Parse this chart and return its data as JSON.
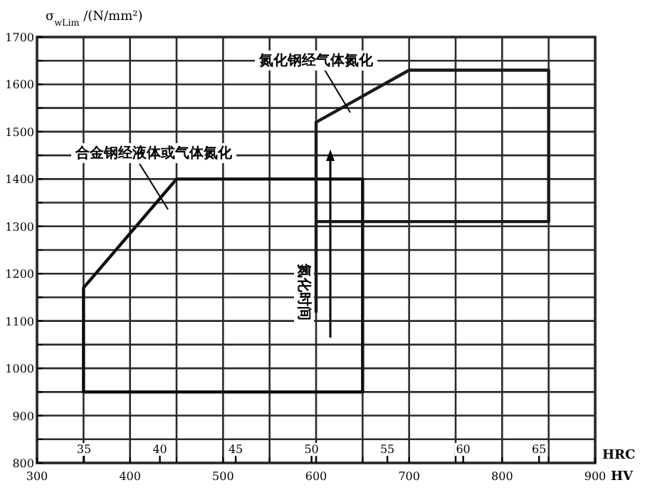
{
  "chart_data": {
    "type": "line",
    "ylabel": "σ$_{wLim}$ /(N/mm²)",
    "xlabel": "HV",
    "x2label": "HRC",
    "xlim": [
      300,
      900
    ],
    "ylim": [
      800,
      1700
    ],
    "xticks": [
      300,
      {
        "value": 350,
        "label": null
      },
      400,
      {
        "value": 450,
        "label": null
      },
      500,
      {
        "value": 550,
        "label": null
      },
      600,
      {
        "value": 650,
        "label": null
      },
      700,
      {
        "value": 750,
        "label": null
      },
      800,
      {
        "value": 850,
        "label": null
      },
      900
    ],
    "yticks": [
      800,
      {
        "value": 850,
        "label": null
      },
      900,
      {
        "value": 950,
        "label": null
      },
      1000,
      {
        "value": 1050,
        "label": null
      },
      1100,
      {
        "value": 1150,
        "label": null
      },
      1200,
      {
        "value": 1250,
        "label": null
      },
      1300,
      {
        "value": 1350,
        "label": null
      },
      1400,
      {
        "value": 1450,
        "label": null
      },
      1500,
      {
        "value": 1550,
        "label": null
      },
      1600,
      {
        "value": 1650,
        "label": null
      },
      1700
    ],
    "x2lim": [
      31.9,
      68.7
    ],
    "x2ticks": [
      35,
      40,
      45,
      50,
      55,
      60,
      65
    ],
    "grid": true,
    "series": [
      {
        "color": "#0d0d0d",
        "x": [
          350,
          350,
          450,
          650,
          650
        ],
        "values": [
          950,
          1170,
          1400,
          1400,
          950
        ]
      },
      {
        "color": "#000000",
        "x": [
          350,
          650
        ],
        "values": [
          950,
          950
        ]
      },
      {
        "color": "#1a1a1a",
        "x": [
          600,
          600,
          700,
          850,
          850,
          600
        ],
        "values": [
          1120,
          1520,
          1630,
          1630,
          1310,
          1310
        ]
      }
    ],
    "annotations": [
      "合金钢经液体或气体氮化",
      "氮化钢经气体氮化",
      "氮化时间"
    ]
  }
}
